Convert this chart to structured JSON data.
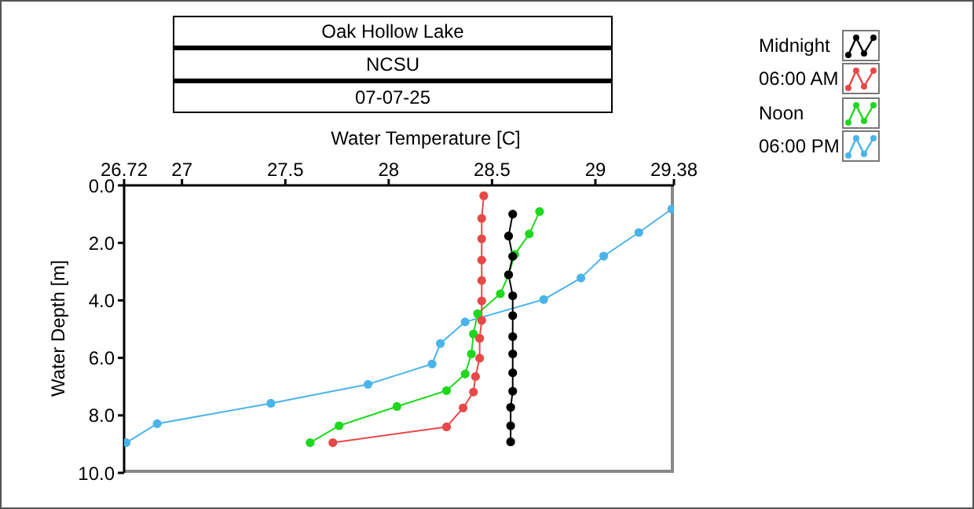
{
  "chart_data": {
    "type": "line",
    "title": "Oak Hollow Lake",
    "subtitle": "NCSU",
    "annotations": [
      "07-07-25"
    ],
    "xlabel": "Water Temperature [C]",
    "ylabel": "Water Depth [m]",
    "xlim": [
      26.72,
      29.38
    ],
    "xticks": [
      26.72,
      27,
      27.5,
      28,
      28.5,
      29,
      29.38
    ],
    "ylim": [
      10,
      0
    ],
    "yticks": [
      {
        "value": 0,
        "label": "0.0"
      },
      {
        "value": 2,
        "label": "2.0"
      },
      {
        "value": 4,
        "label": "4.0"
      },
      {
        "value": 6,
        "label": "6.0"
      },
      {
        "value": 8,
        "label": "8.0"
      },
      {
        "value": 10,
        "label": "10.0"
      }
    ],
    "grid": false,
    "legend": "top right",
    "marker": "circle",
    "line_style": "solid",
    "series": [
      {
        "name": "Midnight",
        "color": "#000000",
        "x": [
          28.6,
          28.58,
          28.6,
          28.58,
          28.6,
          28.6,
          28.6,
          28.6,
          28.6,
          28.6,
          28.59,
          28.59,
          28.59
        ],
        "values": [
          1.0,
          1.76,
          2.47,
          3.11,
          3.84,
          4.53,
          5.26,
          5.86,
          6.52,
          7.16,
          7.72,
          8.36,
          8.92
        ]
      },
      {
        "name": "06:00 AM",
        "color": "#e84848",
        "x": [
          28.46,
          28.45,
          28.45,
          28.45,
          28.45,
          28.45,
          28.45,
          28.44,
          28.44,
          28.42,
          28.41,
          28.36,
          28.28,
          27.73
        ],
        "values": [
          0.36,
          1.15,
          1.86,
          2.6,
          3.31,
          4.02,
          4.7,
          5.32,
          6.01,
          6.65,
          7.19,
          7.74,
          8.4,
          8.95
        ]
      },
      {
        "name": "Noon",
        "color": "#1ed81e",
        "x": [
          28.73,
          28.68,
          28.61,
          28.58,
          28.54,
          28.43,
          28.41,
          28.4,
          28.37,
          28.28,
          28.04,
          27.76,
          27.62
        ],
        "values": [
          0.91,
          1.69,
          2.4,
          3.11,
          3.77,
          4.46,
          5.17,
          5.86,
          6.56,
          7.14,
          7.69,
          8.36,
          8.95
        ]
      },
      {
        "name": "06:00 PM",
        "color": "#4ab4ea",
        "x": [
          29.37,
          29.21,
          29.04,
          28.93,
          28.75,
          28.37,
          28.25,
          28.21,
          27.9,
          27.43,
          26.88,
          26.73
        ],
        "values": [
          0.82,
          1.64,
          2.46,
          3.22,
          3.97,
          4.75,
          5.5,
          6.21,
          6.92,
          7.58,
          8.29,
          8.95
        ]
      }
    ]
  }
}
